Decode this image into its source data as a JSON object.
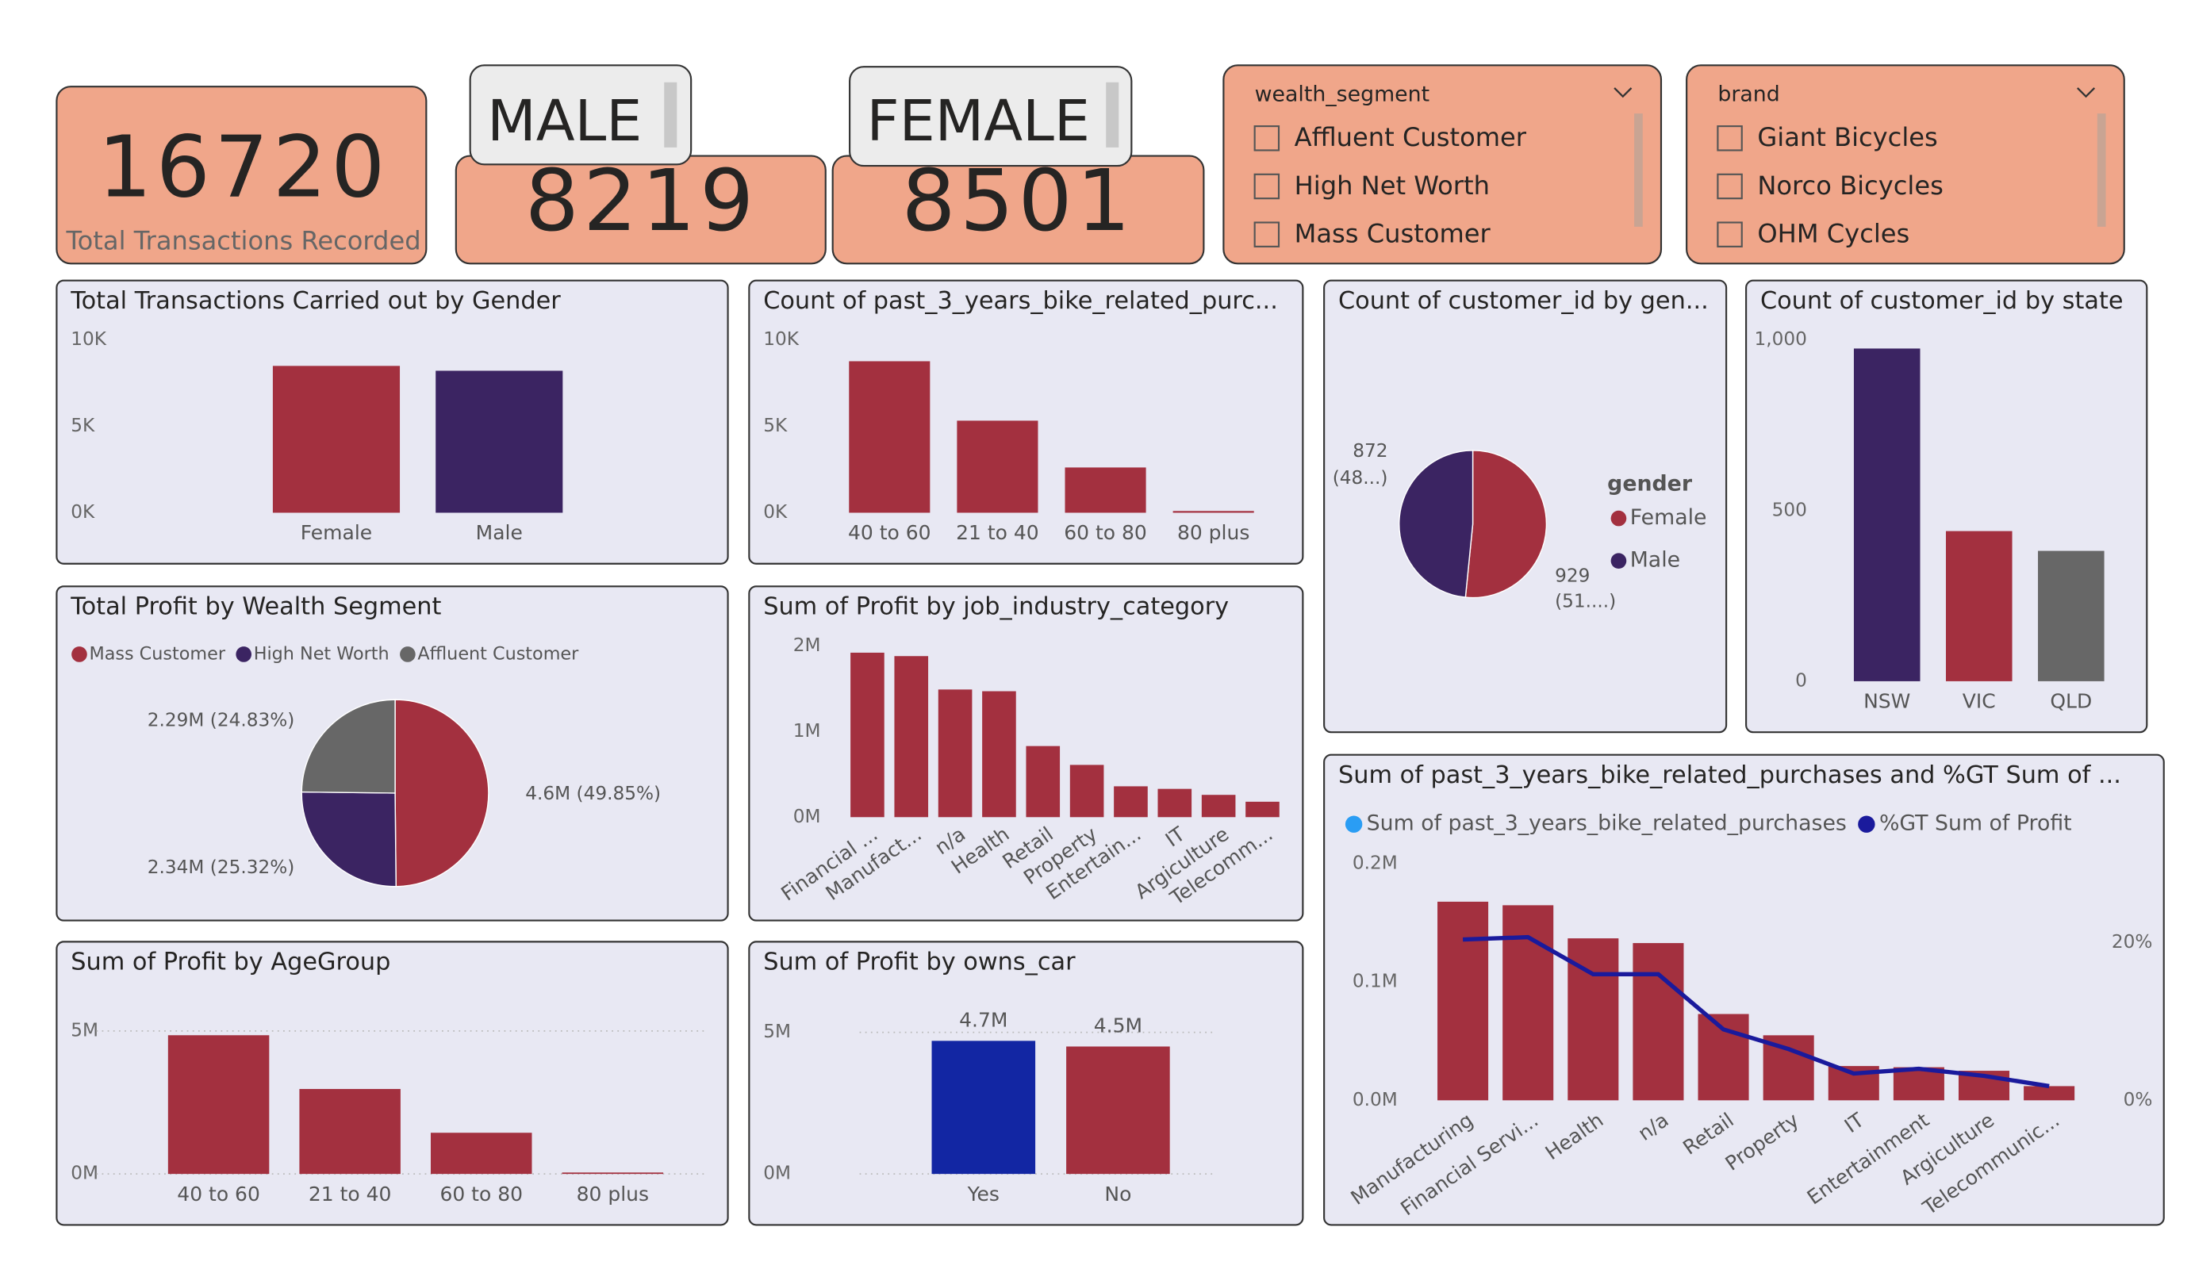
{
  "cards": {
    "total": {
      "value": 16720,
      "label": "Total Transactions Recorded"
    },
    "male": {
      "title": "MALE",
      "value": 8219
    },
    "female": {
      "title": "FEMALE",
      "value": 8501
    }
  },
  "slicers": [
    {
      "title": "wealth_segment",
      "items": [
        "Affluent Customer",
        "High Net Worth",
        "Mass Customer"
      ]
    },
    {
      "title": "brand",
      "items": [
        "Giant Bicycles",
        "Norco Bicycles",
        "OHM Cycles"
      ]
    }
  ],
  "chart_data": [
    {
      "type": "bar",
      "title": "Total Transactions Carried out by Gender",
      "categories": [
        "Female",
        "Male"
      ],
      "values": [
        8501,
        8219
      ],
      "colors": [
        "#a3303f",
        "#3b2462"
      ],
      "ylim": [
        0,
        10000
      ],
      "yticks": [
        {
          "value": 0,
          "label": "0K"
        },
        {
          "value": 5000,
          "label": "5K"
        },
        {
          "value": 10000,
          "label": "10K"
        }
      ],
      "grid": false
    },
    {
      "type": "bar",
      "title": "Count of past_3_years_bike_related_purc...",
      "categories": [
        "40 to 60",
        "21 to 40",
        "60 to 80",
        "80 plus"
      ],
      "values": [
        8770,
        5330,
        2620,
        100
      ],
      "color": "#a3303f",
      "ylim": [
        0,
        10000
      ],
      "yticks": [
        {
          "value": 0,
          "label": "0K"
        },
        {
          "value": 5000,
          "label": "5K"
        },
        {
          "value": 10000,
          "label": "10K"
        }
      ],
      "grid": false
    },
    {
      "type": "pie",
      "title": "Count of customer_id by gen...",
      "categories": [
        "Female",
        "Male"
      ],
      "values": [
        929,
        872
      ],
      "percent_labels": [
        "(51....)",
        "(48...)"
      ],
      "colors": [
        "#a3303f",
        "#3b2462"
      ],
      "legend_title": "gender"
    },
    {
      "type": "bar",
      "title": "Count of customer_id by state",
      "categories": [
        "NSW",
        "VIC",
        "QLD"
      ],
      "values": [
        975,
        440,
        382
      ],
      "colors": [
        "#3b2462",
        "#a3303f",
        "#676767"
      ],
      "ylim": [
        0,
        1000
      ],
      "yticks": [
        0,
        500,
        {
          "value": 1000,
          "label": "1,000"
        }
      ],
      "grid": false
    },
    {
      "type": "pie",
      "title": "Total Profit by Wealth Segment",
      "categories": [
        "Mass Customer",
        "High Net Worth",
        "Affluent Customer"
      ],
      "values": [
        4600000,
        2340000,
        2290000
      ],
      "value_labels": [
        "4.6M (49.85%)",
        "2.34M (25.32%)",
        "2.29M (24.83%)"
      ],
      "colors": [
        "#a3303f",
        "#3b2462",
        "#676767"
      ]
    },
    {
      "type": "bar",
      "title": "Sum of Profit by job_industry_category",
      "categories": [
        "Financial ...",
        "Manufact...",
        "n/a",
        "Health",
        "Retail",
        "Property",
        "Entertain...",
        "IT",
        "Argiculture",
        "Telecomm..."
      ],
      "values": [
        1920000,
        1880000,
        1490000,
        1470000,
        830000,
        610000,
        360000,
        330000,
        260000,
        180000
      ],
      "color": "#a3303f",
      "ylim": [
        0,
        2000000
      ],
      "yticks": [
        {
          "value": 0,
          "label": "0M"
        },
        {
          "value": 1000000,
          "label": "1M"
        },
        {
          "value": 2000000,
          "label": "2M"
        }
      ],
      "grid": false
    },
    {
      "type": "bar",
      "title": "Sum of Profit by AgeGroup",
      "categories": [
        "40 to 60",
        "21 to 40",
        "60 to 80",
        "80 plus"
      ],
      "values": [
        4850000,
        2970000,
        1440000,
        50000
      ],
      "color": "#a3303f",
      "ylim": [
        0,
        5000000
      ],
      "yticks": [
        {
          "value": 0,
          "label": "0M"
        },
        {
          "value": 5000000,
          "label": "5M"
        }
      ],
      "grid": true
    },
    {
      "type": "bar",
      "title": "Sum of Profit by owns_car",
      "categories": [
        "Yes",
        "No"
      ],
      "values": [
        4700000,
        4500000
      ],
      "value_labels": [
        "4.7M",
        "4.5M"
      ],
      "colors": [
        "#1226a3",
        "#a3303f"
      ],
      "ylim": [
        0,
        5000000
      ],
      "yticks": [
        {
          "value": 0,
          "label": "0M"
        },
        {
          "value": 5000000,
          "label": "5M"
        }
      ],
      "grid": true
    },
    {
      "type": "combo",
      "title": "Sum of past_3_years_bike_related_purchases and %GT Sum of ...",
      "categories": [
        "Manufacturing",
        "Financial Servi...",
        "Health",
        "n/a",
        "Retail",
        "Property",
        "IT",
        "Entertainment",
        "Argiculture",
        "Telecommunic..."
      ],
      "series": [
        {
          "name": "Sum of past_3_years_bike_related_purchases",
          "color": "#a3303f",
          "legend_color": "#2a9df4",
          "values": [
            168000,
            165000,
            137000,
            133000,
            73000,
            55000,
            29000,
            28000,
            25000,
            12000
          ]
        },
        {
          "name": "%GT Sum of Profit",
          "color": "#1a1a9c",
          "axis": "y2",
          "values": [
            20.4,
            20.7,
            16.0,
            16.0,
            9.0,
            6.5,
            3.4,
            4.0,
            3.1,
            1.8
          ]
        }
      ],
      "ylim": [
        0,
        200000
      ],
      "yticks": [
        {
          "value": 0,
          "label": "0.0M"
        },
        {
          "value": 100000,
          "label": "0.1M"
        },
        {
          "value": 200000,
          "label": "0.2M"
        }
      ],
      "y2lim": [
        0,
        30
      ],
      "y2ticks": [
        {
          "value": 0,
          "label": "0%"
        },
        {
          "value": 20,
          "label": "20%"
        }
      ],
      "grid": false
    }
  ]
}
